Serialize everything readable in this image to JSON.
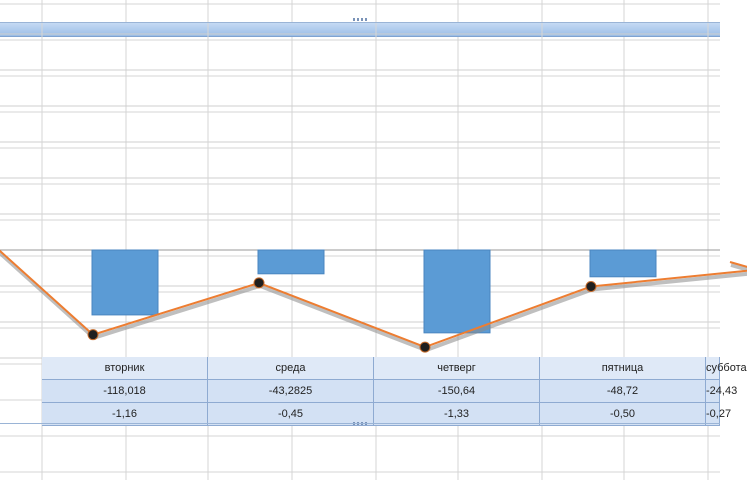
{
  "chart_data": {
    "type": "bar",
    "categories": [
      "вторник",
      "среда",
      "четверг",
      "пятница",
      "суббота"
    ],
    "series": [
      {
        "values": [
          -118.018,
          -43.2825,
          -150.64,
          -48.72,
          -24.43
        ]
      },
      {
        "values": [
          -1.16,
          -0.45,
          -1.33,
          -0.5,
          -0.27
        ]
      }
    ],
    "table_rows": [
      [
        "вторник",
        "среда",
        "четверг",
        "пятница",
        "суббота"
      ],
      [
        "-118,018",
        "-43,2825",
        "-150,64",
        "-48,72",
        "-24,43"
      ],
      [
        "-1,16",
        "-0,45",
        "-1,33",
        "-0,50",
        "-0,27"
      ]
    ],
    "grid": true,
    "colors": {
      "bars": "#5b9bd5",
      "line": "#ed7d31",
      "markers": "#1f1f1f",
      "table_bg": "#dfe9f7"
    }
  }
}
